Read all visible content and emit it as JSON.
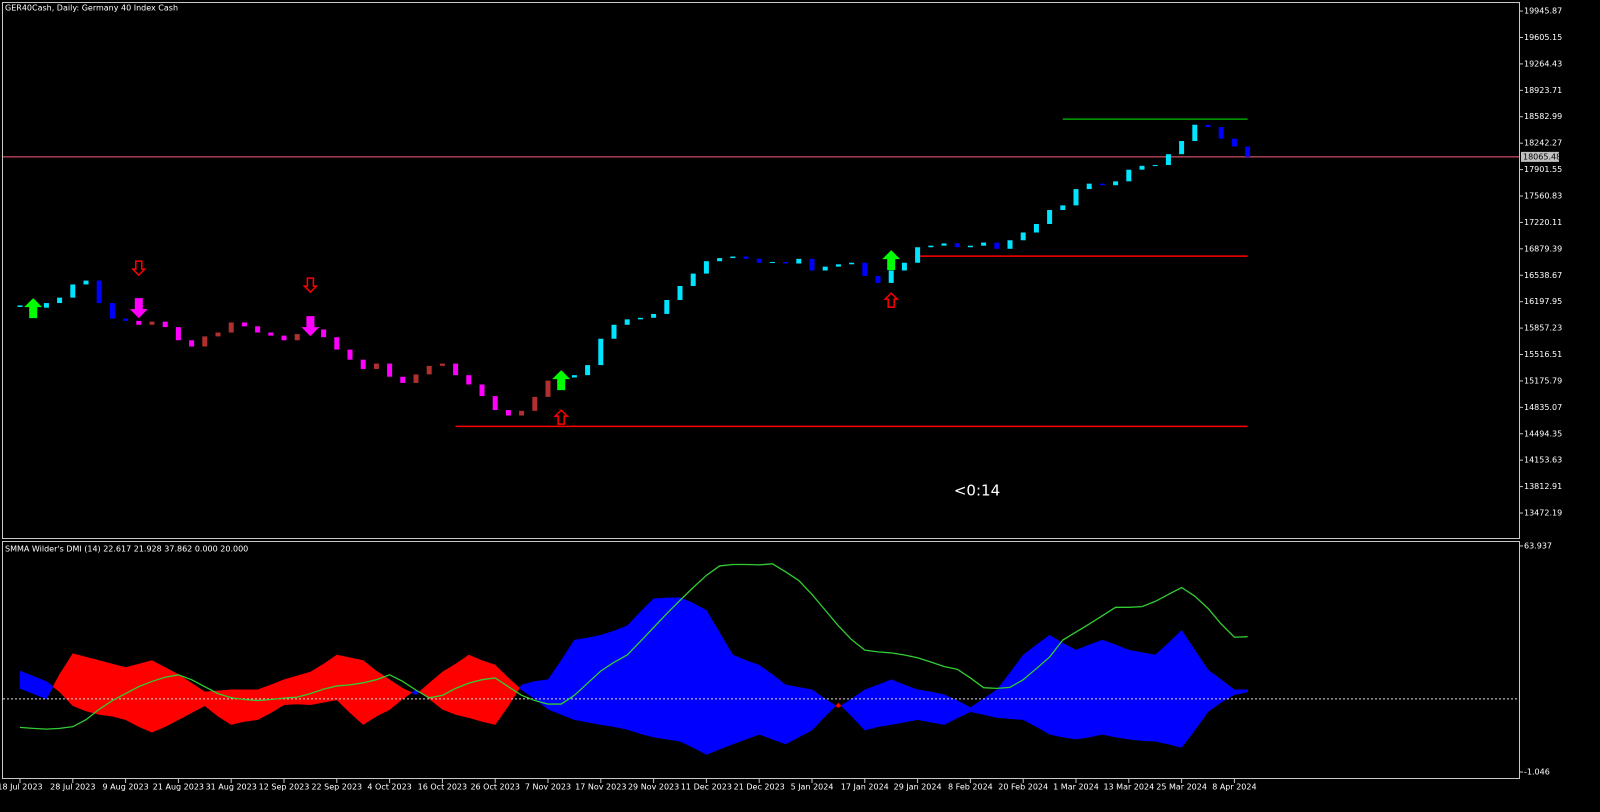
{
  "chart_data": [
    {
      "type": "candlestick",
      "title": "GER40Cash, Daily:  Germany 40 Index Cash",
      "categories": [
        "18 Jul 2023",
        null,
        null,
        null,
        "28 Jul 2023",
        null,
        null,
        null,
        "9 Aug 2023",
        null,
        null,
        null,
        "21 Aug 2023",
        null,
        null,
        null,
        "31 Aug 2023",
        null,
        null,
        null,
        "12 Sep 2023",
        null,
        null,
        null,
        "22 Sep 2023",
        null,
        null,
        null,
        "4 Oct 2023",
        null,
        null,
        null,
        "16 Oct 2023",
        null,
        null,
        null,
        "26 Oct 2023",
        null,
        null,
        null,
        "7 Nov 2023",
        null,
        null,
        null,
        "17 Nov 2023",
        null,
        null,
        null,
        "29 Nov 2023",
        null,
        null,
        null,
        "11 Dec 2023",
        null,
        null,
        null,
        "21 Dec 2023",
        null,
        null,
        null,
        "5 Jan 2024",
        null,
        null,
        null,
        "17 Jan 2024",
        null,
        null,
        null,
        "29 Jan 2024",
        null,
        null,
        null,
        "8 Feb 2024",
        null,
        null,
        null,
        "20 Feb 2024",
        null,
        null,
        null,
        "1 Mar 2024",
        null,
        null,
        null,
        "13 Mar 2024",
        null,
        null,
        null,
        "25 Mar 2024",
        null,
        null,
        null,
        "8 Apr 2024",
        null
      ],
      "open": [
        16130,
        16150,
        16120,
        16180,
        16250,
        16420,
        16470,
        16180,
        15980,
        15950,
        15900,
        15940,
        15870,
        15700,
        15620,
        15750,
        15800,
        15930,
        15880,
        15800,
        15760,
        15700,
        15780,
        15840,
        15740,
        15580,
        15450,
        15330,
        15400,
        15230,
        15150,
        15260,
        15370,
        15400,
        15250,
        15130,
        14980,
        14800,
        14730,
        14790,
        14970,
        15180,
        15220,
        15250,
        15380,
        15720,
        15900,
        15970,
        15990,
        16040,
        16220,
        16400,
        16560,
        16720,
        16760,
        16780,
        16750,
        16700,
        16710,
        16690,
        16750,
        16600,
        16650,
        16680,
        16700,
        16530,
        16440,
        16600,
        16700,
        16900,
        16920,
        16950,
        16900,
        16920,
        16960,
        16880,
        16990,
        17090,
        17200,
        17380,
        17440,
        17650,
        17720,
        17700,
        17750,
        17900,
        17950,
        17960,
        18100,
        18270,
        18480,
        18450,
        18300,
        18200
      ],
      "close": [
        16150,
        16120,
        16180,
        16250,
        16420,
        16470,
        16180,
        15980,
        15950,
        15900,
        15940,
        15870,
        15700,
        15620,
        15750,
        15800,
        15930,
        15880,
        15800,
        15760,
        15700,
        15780,
        15840,
        15740,
        15580,
        15450,
        15330,
        15400,
        15230,
        15150,
        15260,
        15370,
        15400,
        15250,
        15130,
        14980,
        14800,
        14730,
        14790,
        14970,
        15180,
        15220,
        15250,
        15380,
        15720,
        15900,
        15970,
        15990,
        16040,
        16220,
        16400,
        16560,
        16720,
        16760,
        16780,
        16750,
        16700,
        16710,
        16690,
        16750,
        16600,
        16650,
        16680,
        16700,
        16530,
        16440,
        16600,
        16700,
        16900,
        16920,
        16950,
        16900,
        16920,
        16960,
        16880,
        16990,
        17090,
        17200,
        17380,
        17440,
        17650,
        17720,
        17700,
        17750,
        17900,
        17950,
        17960,
        18100,
        18270,
        18480,
        18450,
        18300,
        18200,
        18065.48
      ],
      "ylim": [
        13150,
        20050
      ],
      "yticks": [
        19945.87,
        19605.15,
        19264.43,
        18923.71,
        18582.99,
        18242.27,
        17901.55,
        17560.83,
        17220.11,
        16879.39,
        16538.67,
        16197.95,
        15857.23,
        15516.51,
        15175.79,
        14835.07,
        14494.35,
        14153.63,
        13812.91,
        13472.19
      ],
      "colors": {
        "up_bull": "#00e5ff",
        "up_bear": "#0000ff",
        "down_bull": "#b03030",
        "down_bear": "#ff00ff",
        "signal_up": "#00ff00",
        "signal_down": "#ff00ff",
        "alert": "#ff0000"
      },
      "signals": [
        {
          "x": 1,
          "direction": "up",
          "price": 16243
        },
        {
          "x": 9,
          "direction": "down",
          "price": 15985
        },
        {
          "x": 22,
          "direction": "down",
          "price": 15753
        },
        {
          "x": 41,
          "direction": "up",
          "price": 15315
        },
        {
          "x": 66,
          "direction": "up",
          "price": 16862
        }
      ],
      "alerts": [
        {
          "x": 9,
          "direction": "down",
          "price": 16540
        },
        {
          "x": 22,
          "direction": "down",
          "price": 16321
        },
        {
          "x": 41,
          "direction": "up",
          "price": 14799
        },
        {
          "x": 66,
          "direction": "up",
          "price": 16308
        }
      ],
      "levels": [
        {
          "value": 16785,
          "start": 68,
          "color": "#ff0000"
        },
        {
          "value": 14590,
          "start": 33,
          "color": "#ff0000"
        },
        {
          "value": 18553,
          "start": 79,
          "color": "#00a000"
        }
      ],
      "current_price": {
        "value": 18065.48,
        "color": "#ff6080"
      },
      "timer": "<0:14"
    },
    {
      "type": "dmi",
      "title": "SMMA Wilder's DMI (14) 22.617 21.928 37.862 0.000 20.000",
      "series": [
        {
          "color": "#0000ff",
          "values": [
            28,
            26.5,
            25,
            22,
            18,
            16.5,
            15.5,
            15,
            14,
            12,
            10.4,
            12,
            14,
            16,
            18,
            15,
            12.6,
            13.5,
            14,
            16,
            18.3,
            18.5,
            18.3,
            19,
            19.7,
            16,
            12.6,
            15,
            16.9,
            20,
            22.6,
            20,
            17,
            15.5,
            14.6,
            13.5,
            12.6,
            18,
            24,
            25,
            25.5,
            31,
            36.9,
            37.5,
            38.3,
            39.5,
            41,
            45,
            48.8,
            49,
            49.1,
            47.5,
            45.4,
            39,
            32.6,
            31,
            29.7,
            27,
            24,
            23.3,
            22.6,
            20,
            17.5,
            20,
            22.6,
            24,
            25.5,
            24,
            22.6,
            22,
            21.2,
            19.5,
            17.5,
            20,
            22.6,
            27.5,
            32.6,
            35.5,
            38.3,
            36,
            34,
            35.5,
            36.9,
            35.5,
            34,
            33.3,
            32.6,
            36,
            39.7,
            34,
            28.3,
            25.5,
            22.6,
            22.617
          ]
        },
        {
          "color": "#ff0000",
          "values": [
            23,
            21.5,
            20,
            27,
            33,
            32,
            31,
            30,
            29,
            30,
            31,
            29,
            27,
            24.5,
            22,
            22.3,
            22.6,
            22.6,
            22.6,
            24,
            25.5,
            26.6,
            27.7,
            30,
            32.6,
            31.8,
            31,
            28,
            25.5,
            23,
            21.2,
            24.5,
            27.7,
            30,
            32.6,
            31,
            29.7,
            26,
            22.6,
            20,
            17,
            15.5,
            14,
            13.3,
            12.6,
            12,
            11.2,
            10,
            9,
            8.4,
            7.8,
            6,
            4,
            5.5,
            7,
            8.4,
            9.8,
            8.4,
            7,
            9,
            11,
            15,
            18.8,
            15,
            11,
            12,
            12.6,
            13.3,
            14,
            13.3,
            12.6,
            14.5,
            16.3,
            15.5,
            14.6,
            14.3,
            14,
            12,
            9.8,
            9,
            8.4,
            9,
            9.8,
            9,
            8.4,
            8,
            7.8,
            7,
            6,
            11,
            16.3,
            19,
            21.2,
            21.928
          ]
        },
        {
          "color": "#32cd32",
          "values": [
            11.8,
            11.5,
            11.3,
            11.5,
            12,
            14,
            17,
            19.5,
            21.5,
            23.5,
            25,
            26.2,
            26.9,
            25.5,
            23.5,
            21.5,
            20.3,
            19.8,
            19.5,
            19.8,
            20.2,
            20.5,
            21.5,
            22.8,
            23.7,
            24,
            24.6,
            25.5,
            26.9,
            25,
            22.5,
            20.3,
            21,
            23,
            24.5,
            25.5,
            26,
            23.5,
            21,
            19.5,
            18.5,
            18.5,
            21,
            24.5,
            28,
            30.5,
            32.6,
            36.5,
            40.5,
            44.5,
            48.3,
            52,
            55.5,
            58.2,
            58.6,
            58.6,
            58.5,
            58.8,
            56.5,
            54,
            50,
            45.5,
            41,
            37,
            34,
            33.5,
            33.2,
            32.6,
            31.8,
            30.6,
            29.3,
            28.5,
            26,
            23.2,
            23,
            23.3,
            25.5,
            28.7,
            32,
            36.9,
            39.2,
            41.5,
            43.9,
            46.3,
            46.3,
            46.5,
            48,
            50,
            52,
            49.5,
            46,
            41.5,
            37.7,
            37.862
          ]
        }
      ],
      "levels": [
        20
      ],
      "ylim": [
        -2.756,
        65.077
      ],
      "yticks": [
        63.937,
        -1.046
      ]
    }
  ]
}
